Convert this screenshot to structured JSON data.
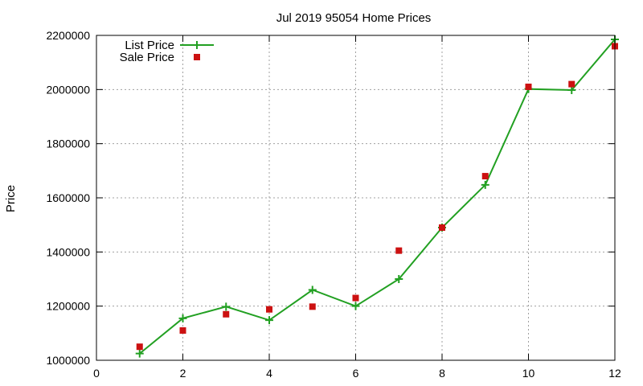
{
  "chart_data": {
    "type": "line",
    "title": "Jul 2019 95054 Home Prices",
    "xlabel": "",
    "ylabel": "Price",
    "xlim": [
      0,
      12
    ],
    "ylim": [
      1000000,
      2200000
    ],
    "x_ticks": [
      0,
      2,
      4,
      6,
      8,
      10,
      12
    ],
    "y_ticks": [
      1000000,
      1200000,
      1400000,
      1600000,
      1800000,
      2000000,
      2200000
    ],
    "x_tick_labels": [
      "0",
      "2",
      "4",
      "6",
      "8",
      "10",
      "12"
    ],
    "y_tick_labels": [
      "1000000",
      "1200000",
      "1400000",
      "1600000",
      "1800000",
      "2000000",
      "2200000"
    ],
    "grid": true,
    "legend_position": "top-left",
    "series": [
      {
        "name": "List Price",
        "style": "line-with-plus-markers",
        "color": "#22a022",
        "x": [
          1,
          2,
          3,
          4,
          5,
          6,
          7,
          8,
          9,
          10,
          11,
          12
        ],
        "values": [
          1025000,
          1155000,
          1198000,
          1148000,
          1260000,
          1200000,
          1300000,
          1490000,
          1648000,
          2002000,
          1998000,
          2185000
        ]
      },
      {
        "name": "Sale Price",
        "style": "square-markers",
        "color": "#cc1111",
        "x": [
          1,
          2,
          3,
          4,
          5,
          6,
          7,
          8,
          9,
          10,
          11,
          12
        ],
        "values": [
          1050000,
          1110000,
          1170000,
          1188000,
          1198000,
          1230000,
          1405000,
          1490000,
          1680000,
          2010000,
          2020000,
          2160000
        ]
      }
    ]
  }
}
